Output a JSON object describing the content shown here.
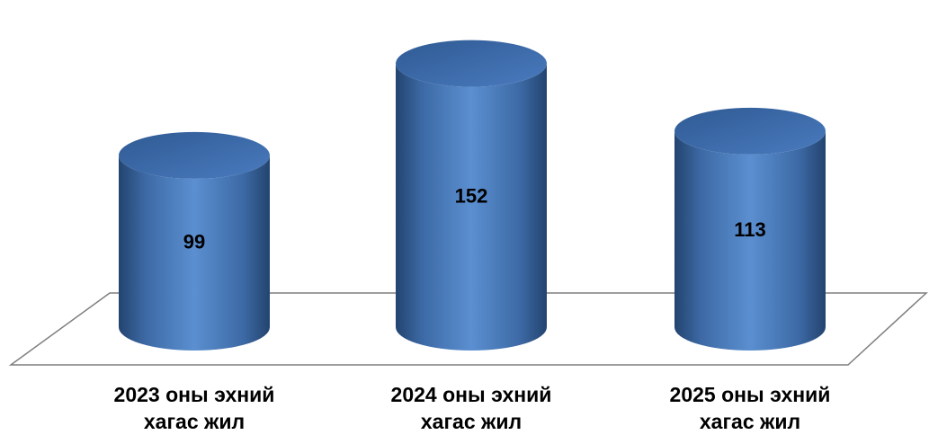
{
  "chart_data": {
    "type": "bar",
    "style": "3d-cylinder",
    "categories": [
      "2023 оны эхний\nхагас жил",
      "2024 оны эхний\nхагас жил",
      "2025 оны эхний\nхагас жил"
    ],
    "values": [
      99,
      152,
      113
    ],
    "data_labels": [
      "99",
      "152",
      "113"
    ],
    "title": "",
    "xlabel": "",
    "ylabel": "",
    "legend": "none",
    "grid": false,
    "colors": {
      "bar": "#4f81bd",
      "bar_dark": "#2a4d80",
      "top": "#3a6aa8",
      "floor_line": "#7f7f7f"
    }
  }
}
